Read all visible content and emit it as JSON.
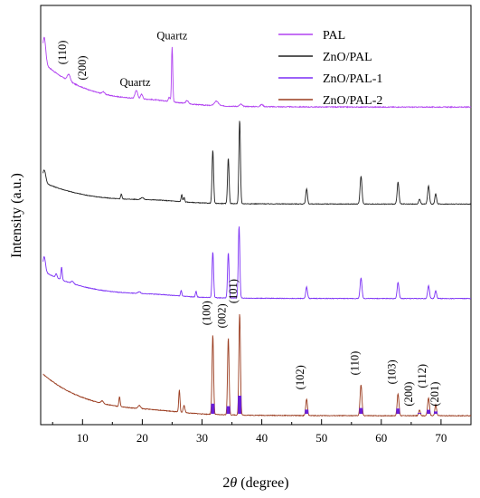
{
  "chart_data": {
    "type": "line",
    "xlabel_prefix": "2",
    "xlabel_symbol": "θ",
    "xlabel_suffix": " (degree)",
    "ylabel": "Intensity (a.u.)",
    "xlim": [
      3,
      75
    ],
    "xticks": [
      10,
      20,
      30,
      40,
      50,
      60,
      70
    ],
    "grid": false,
    "legend_position": "top-right",
    "legend": [
      {
        "name": "PAL",
        "color": "#b040f0"
      },
      {
        "name": "ZnO/PAL",
        "color": "#202020"
      },
      {
        "name": "ZnO/PAL-1",
        "color": "#7b2ff5"
      },
      {
        "name": "ZnO/PAL-2",
        "color": "#9a3b1e"
      }
    ],
    "series": [
      {
        "name": "PAL",
        "color": "#b040f0",
        "baseline_start": 0.9,
        "baseline_end": 0.265,
        "noise": 0.012,
        "peaks": [
          [
            3.6,
            0.35,
            0.35
          ],
          [
            7.7,
            0.09,
            0.35
          ],
          [
            13.5,
            0.03,
            0.3
          ],
          [
            19.0,
            0.11,
            0.3
          ],
          [
            19.9,
            0.06,
            0.25
          ],
          [
            24.5,
            0.06,
            0.2
          ],
          [
            25.0,
            0.74,
            0.15
          ],
          [
            27.5,
            0.04,
            0.3
          ],
          [
            32.4,
            0.06,
            0.5
          ],
          [
            36.5,
            0.03,
            0.3
          ],
          [
            40.0,
            0.03,
            0.3
          ]
        ]
      },
      {
        "name": "ZnO/PAL",
        "color": "#202020",
        "baseline_start": 0.52,
        "baseline_end": 0.065,
        "noise": 0.012,
        "peaks": [
          [
            3.6,
            0.25,
            0.35
          ],
          [
            16.5,
            0.1,
            0.15
          ],
          [
            20.0,
            0.04,
            0.3
          ],
          [
            26.6,
            0.14,
            0.15
          ],
          [
            27.0,
            0.09,
            0.15
          ],
          [
            31.8,
            1.05,
            0.18
          ],
          [
            34.4,
            0.9,
            0.18
          ],
          [
            36.3,
            1.65,
            0.18
          ],
          [
            47.5,
            0.3,
            0.2
          ],
          [
            56.6,
            0.55,
            0.22
          ],
          [
            62.8,
            0.43,
            0.22
          ],
          [
            66.4,
            0.1,
            0.2
          ],
          [
            67.9,
            0.36,
            0.22
          ],
          [
            69.1,
            0.2,
            0.2
          ]
        ]
      },
      {
        "name": "ZnO/PAL-1",
        "color": "#7b2ff5",
        "baseline_start": 0.75,
        "baseline_end": 0.07,
        "noise": 0.014,
        "peaks": [
          [
            3.6,
            0.35,
            0.3
          ],
          [
            5.6,
            0.09,
            0.2
          ],
          [
            6.5,
            0.3,
            0.15
          ],
          [
            8.3,
            0.06,
            0.3
          ],
          [
            19.5,
            0.04,
            0.3
          ],
          [
            26.5,
            0.13,
            0.15
          ],
          [
            29.0,
            0.13,
            0.15
          ],
          [
            31.8,
            1.08,
            0.18
          ],
          [
            34.4,
            1.06,
            0.18
          ],
          [
            36.2,
            1.7,
            0.18
          ],
          [
            47.5,
            0.27,
            0.2
          ],
          [
            56.6,
            0.48,
            0.22
          ],
          [
            62.8,
            0.38,
            0.22
          ],
          [
            67.9,
            0.3,
            0.22
          ],
          [
            69.1,
            0.18,
            0.2
          ]
        ]
      },
      {
        "name": "ZnO/PAL-2",
        "color": "#9a3b1e",
        "baseline_start": 0.95,
        "baseline_end": 0.07,
        "noise": 0.014,
        "peaks": [
          [
            13.3,
            0.05,
            0.3
          ],
          [
            16.2,
            0.2,
            0.15
          ],
          [
            19.5,
            0.06,
            0.3
          ],
          [
            26.2,
            0.44,
            0.15
          ],
          [
            27.0,
            0.14,
            0.2
          ],
          [
            31.8,
            1.6,
            0.18
          ],
          [
            34.4,
            1.55,
            0.18
          ],
          [
            36.3,
            2.05,
            0.18
          ],
          [
            47.5,
            0.33,
            0.2
          ],
          [
            56.6,
            0.62,
            0.22
          ],
          [
            62.8,
            0.44,
            0.22
          ],
          [
            66.4,
            0.12,
            0.2
          ],
          [
            67.9,
            0.36,
            0.22
          ],
          [
            69.1,
            0.22,
            0.2
          ]
        ]
      }
    ],
    "reference_bars": {
      "color": "#6a1fd8",
      "positions": [
        31.8,
        34.4,
        36.3,
        47.5,
        56.6,
        62.8,
        66.4,
        67.9,
        69.1
      ],
      "intensities": [
        0.56,
        0.42,
        1.0,
        0.23,
        0.32,
        0.29,
        0.05,
        0.22,
        0.13
      ]
    },
    "annotations": [
      {
        "text": "(110)",
        "series": "PAL",
        "x": 7.7,
        "rotated": true
      },
      {
        "text": "(200)",
        "series": "PAL",
        "x": 11.0,
        "rotated": true
      },
      {
        "text": "Quartz",
        "series": "PAL",
        "x": 18.8,
        "rotated": false
      },
      {
        "text": "Quartz",
        "series": "PAL",
        "x": 25.0,
        "rotated": false
      },
      {
        "text": "(100)",
        "series": "ZnO/PAL-2",
        "x": 31.8,
        "rotated": true
      },
      {
        "text": "(002)",
        "series": "ZnO/PAL-2",
        "x": 34.4,
        "rotated": true
      },
      {
        "text": "(101)",
        "series": "ZnO/PAL-2",
        "x": 36.3,
        "rotated": true
      },
      {
        "text": "(102)",
        "series": "ZnO/PAL-2",
        "x": 47.5,
        "rotated": true
      },
      {
        "text": "(110)",
        "series": "ZnO/PAL-2",
        "x": 56.6,
        "rotated": true
      },
      {
        "text": "(103)",
        "series": "ZnO/PAL-2",
        "x": 62.8,
        "rotated": true
      },
      {
        "text": "(200)",
        "series": "ZnO/PAL-2",
        "x": 65.6,
        "rotated": true
      },
      {
        "text": "(112)",
        "series": "ZnO/PAL-2",
        "x": 67.9,
        "rotated": true
      },
      {
        "text": "(201)",
        "series": "ZnO/PAL-2",
        "x": 70.0,
        "rotated": true
      }
    ]
  }
}
